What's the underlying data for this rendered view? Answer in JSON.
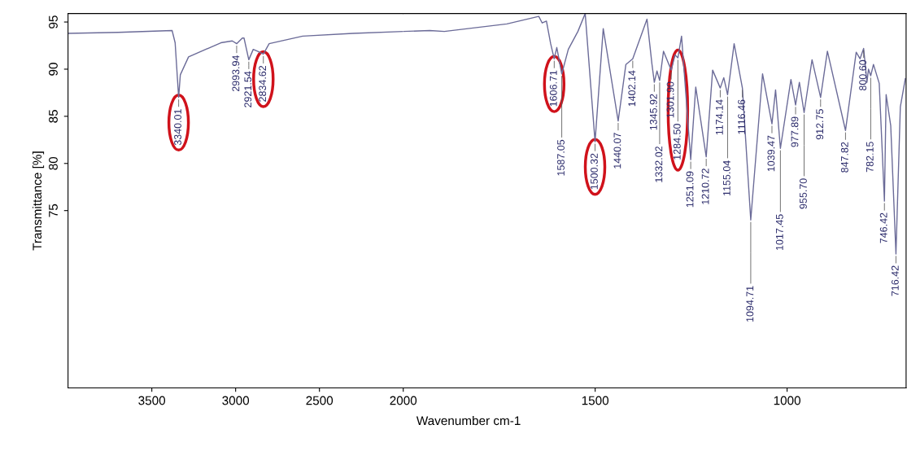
{
  "chart_data": [
    {
      "type": "line",
      "ylabel": "Transmittance [%]",
      "xlim": [
        4000,
        2000
      ],
      "xticks": [
        3500,
        3000,
        2500
      ],
      "ylim": [
        56.2,
        95.9
      ],
      "yticks": [
        75,
        80,
        85,
        90,
        95
      ],
      "grid": false,
      "marker": "none",
      "line_style": "solid",
      "series": [
        {
          "color": "#6b6b98",
          "x": [
            4000,
            3700,
            3379,
            3361,
            3340.01,
            3330,
            3281,
            3088,
            3020,
            2993.94,
            2960,
            2950,
            2921.54,
            2895,
            2870,
            2834.62,
            2800,
            2600,
            2300,
            2000
          ],
          "values": [
            93.8,
            93.9,
            94.1,
            92.8,
            87.0,
            89.4,
            91.3,
            92.8,
            93.0,
            92.7,
            93.3,
            93.3,
            91.0,
            92.1,
            91.9,
            91.6,
            92.7,
            93.5,
            93.8,
            94.0
          ]
        }
      ],
      "annotations": [
        {
          "text": "3340.01",
          "x": 3340.01,
          "y": 87.0
        },
        {
          "text": "2993.94",
          "x": 2993.94,
          "y": 92.7
        },
        {
          "text": "2921.54",
          "x": 2921.54,
          "y": 91.0
        },
        {
          "text": "2834.62",
          "x": 2834.62,
          "y": 91.6
        }
      ]
    },
    {
      "type": "line",
      "xlabel": "Wavenumber cm-1",
      "xlim": [
        2000,
        690
      ],
      "xticks": [
        2000,
        1500,
        1000
      ],
      "ylim": [
        56.2,
        95.9
      ],
      "tick_labels": "x",
      "grid": false,
      "marker": "none",
      "line_style": "solid",
      "series": [
        {
          "color": "#6b6b98",
          "x": [
            2000,
            1931,
            1893,
            1730,
            1647,
            1638,
            1627,
            1616,
            1606.71,
            1600,
            1587.05,
            1570,
            1545,
            1526,
            1500.32,
            1479,
            1440.07,
            1420,
            1402.14,
            1365,
            1352,
            1345.92,
            1339,
            1332.02,
            1322,
            1301.9,
            1292,
            1284.5,
            1275,
            1251.09,
            1238,
            1210.72,
            1194,
            1174.14,
            1165,
            1155.04,
            1138,
            1116.46,
            1094.71,
            1064,
            1039.47,
            1030,
            1017.45,
            990,
            977.89,
            968,
            955.7,
            935,
            912.75,
            895,
            847.82,
            820,
            810,
            800.6,
            792,
            788,
            782.15,
            775,
            760,
            746.42,
            742,
            730,
            716.42,
            705,
            692
          ],
          "values": [
            94.0,
            94.1,
            94.0,
            94.8,
            95.6,
            94.9,
            95.1,
            92.7,
            91.1,
            92.3,
            89.5,
            92.1,
            94.0,
            95.9,
            82.3,
            94.3,
            84.5,
            90.5,
            91.1,
            95.3,
            90.5,
            88.6,
            89.8,
            88.8,
            91.9,
            89.9,
            91.5,
            91.2,
            93.5,
            80.4,
            88.1,
            80.7,
            89.9,
            88.0,
            89.1,
            87.3,
            92.7,
            88.0,
            74.0,
            89.5,
            84.2,
            87.8,
            81.6,
            88.9,
            86.2,
            88.6,
            85.4,
            91.0,
            87.0,
            91.9,
            83.5,
            91.8,
            91.1,
            92.2,
            88.6,
            90.0,
            89.3,
            90.5,
            88.5,
            76.0,
            87.3,
            84.0,
            70.4,
            86.0,
            89.0
          ]
        }
      ],
      "annotations": [
        {
          "text": "1606.71",
          "x": 1606.71,
          "y": 91.1
        },
        {
          "text": "1587.05",
          "x": 1587.05,
          "y": 89.5
        },
        {
          "text": "1500.32",
          "x": 1500.32,
          "y": 82.3
        },
        {
          "text": "1440.07",
          "x": 1440.07,
          "y": 84.5
        },
        {
          "text": "1402.14",
          "x": 1402.14,
          "y": 91.1
        },
        {
          "text": "1345.92",
          "x": 1345.92,
          "y": 88.6
        },
        {
          "text": "1332.02",
          "x": 1332.02,
          "y": 88.8
        },
        {
          "text": "1301.90",
          "x": 1301.9,
          "y": 89.9
        },
        {
          "text": "1284.50",
          "x": 1284.5,
          "y": 91.2
        },
        {
          "text": "1251.09",
          "x": 1251.09,
          "y": 80.4
        },
        {
          "text": "1210.72",
          "x": 1210.72,
          "y": 80.7
        },
        {
          "text": "1174.14",
          "x": 1174.14,
          "y": 88.0
        },
        {
          "text": "1155.04",
          "x": 1155.04,
          "y": 87.3
        },
        {
          "text": "1116.46",
          "x": 1116.46,
          "y": 88.0
        },
        {
          "text": "1094.71",
          "x": 1094.71,
          "y": 74.0
        },
        {
          "text": "1039.47",
          "x": 1039.47,
          "y": 84.2
        },
        {
          "text": "1017.45",
          "x": 1017.45,
          "y": 81.6
        },
        {
          "text": "977.89",
          "x": 977.89,
          "y": 86.2
        },
        {
          "text": "955.70",
          "x": 955.7,
          "y": 85.4
        },
        {
          "text": "912.75",
          "x": 912.75,
          "y": 87.0
        },
        {
          "text": "847.82",
          "x": 847.82,
          "y": 83.5
        },
        {
          "text": "800.60",
          "x": 800.6,
          "y": 92.2
        },
        {
          "text": "782.15",
          "x": 782.15,
          "y": 89.3
        },
        {
          "text": "746.42",
          "x": 746.42,
          "y": 76.0
        },
        {
          "text": "716.42",
          "x": 716.42,
          "y": 70.4
        }
      ]
    }
  ]
}
